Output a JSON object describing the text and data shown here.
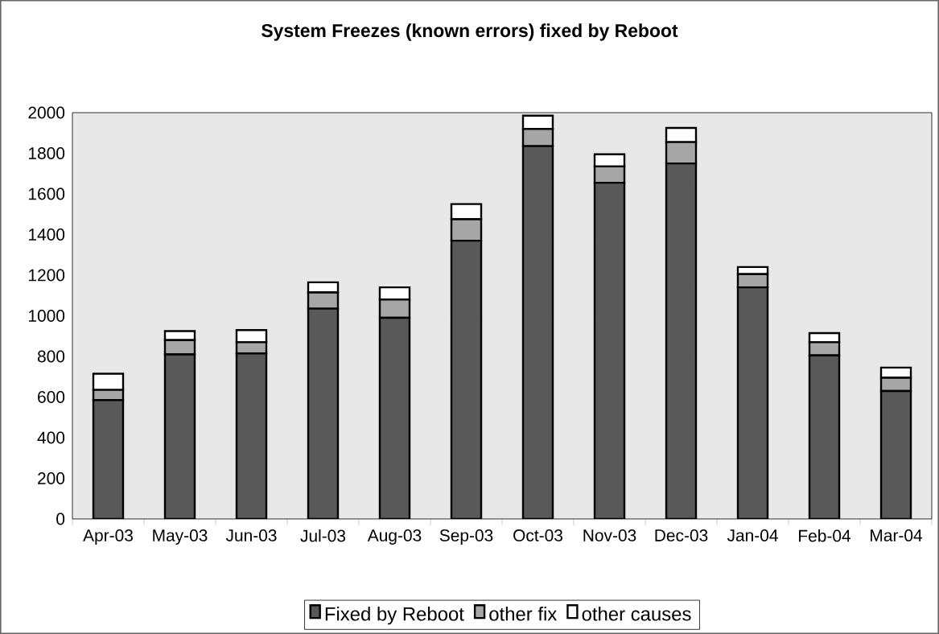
{
  "chart_data": {
    "type": "bar",
    "title": "System Freezes (known errors) fixed by Reboot",
    "stacked": true,
    "categories": [
      "Apr-03",
      "May-03",
      "Jun-03",
      "Jul-03",
      "Aug-03",
      "Sep-03",
      "Oct-03",
      "Nov-03",
      "Dec-03",
      "Jan-04",
      "Feb-04",
      "Mar-04"
    ],
    "series": [
      {
        "name": "Fixed by Reboot",
        "color": "#595959",
        "values": [
          585,
          810,
          815,
          1035,
          990,
          1370,
          1835,
          1655,
          1750,
          1140,
          805,
          630
        ]
      },
      {
        "name": "other fix",
        "color": "#a6a6a6",
        "values": [
          50,
          70,
          55,
          80,
          90,
          105,
          85,
          80,
          105,
          65,
          65,
          65
        ]
      },
      {
        "name": "other causes",
        "color": "#ffffff",
        "values": [
          80,
          45,
          60,
          50,
          60,
          75,
          65,
          60,
          70,
          35,
          45,
          50
        ]
      }
    ],
    "ylim": [
      0,
      2000
    ],
    "yticks": [
      0,
      200,
      400,
      600,
      800,
      1000,
      1200,
      1400,
      1600,
      1800,
      2000
    ],
    "grid": false,
    "legend": "bottom"
  }
}
